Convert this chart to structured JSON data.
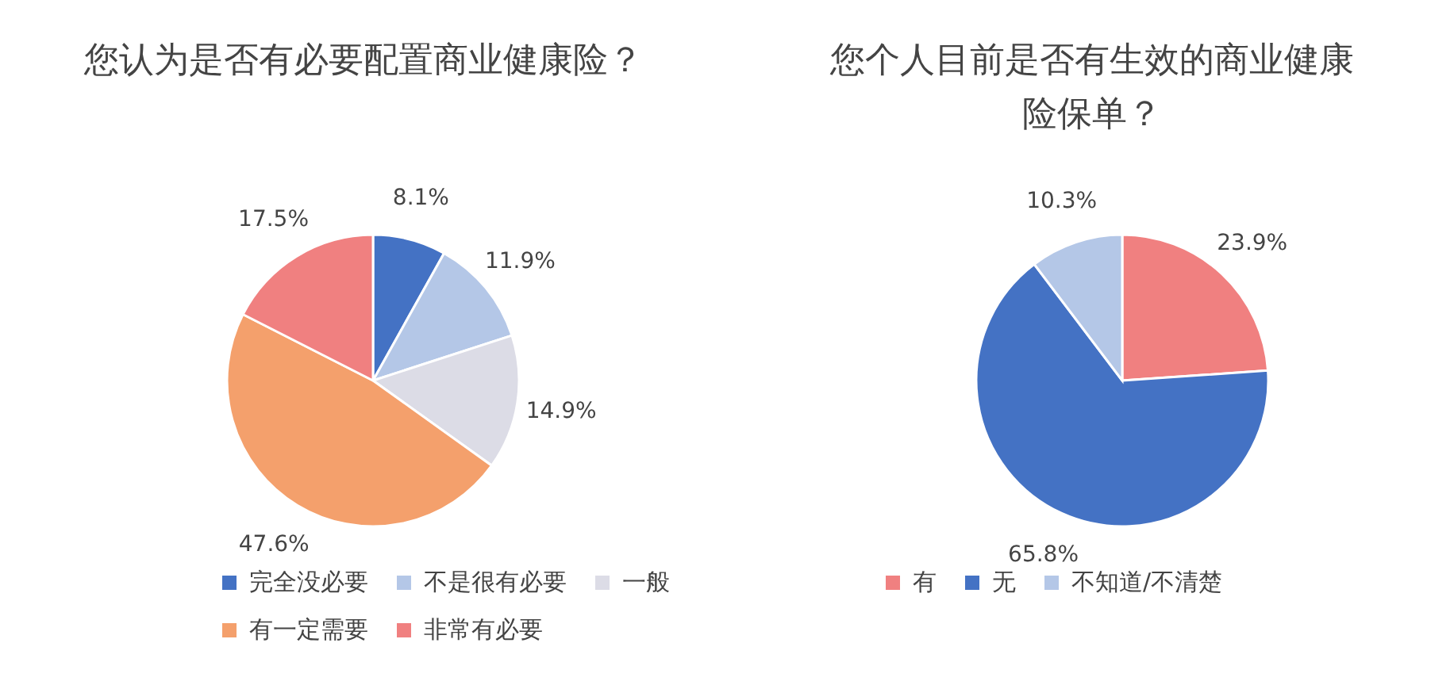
{
  "chart_data": [
    {
      "type": "pie",
      "title": "您认为是否有必要配置商业健康险？",
      "categories": [
        "完全没必要",
        "不是很有必要",
        "一般",
        "有一定需要",
        "非常有必要"
      ],
      "values": [
        8.1,
        11.9,
        14.9,
        47.6,
        17.5
      ],
      "colors": [
        "#4472c4",
        "#b4c7e7",
        "#dcdce6",
        "#f4a06c",
        "#f08080"
      ],
      "value_labels": [
        "8.1%",
        "11.9%",
        "14.9%",
        "47.6%",
        "17.5%"
      ],
      "legend": "bottom"
    },
    {
      "type": "pie",
      "title": "您个人目前是否有生效的商业健康险保单？",
      "categories": [
        "有",
        "无",
        "不知道/不清楚"
      ],
      "values": [
        23.9,
        65.8,
        10.3
      ],
      "colors": [
        "#f08080",
        "#4472c4",
        "#b4c7e7"
      ],
      "value_labels": [
        "23.9%",
        "65.8%",
        "10.3%"
      ],
      "legend": "bottom"
    }
  ]
}
